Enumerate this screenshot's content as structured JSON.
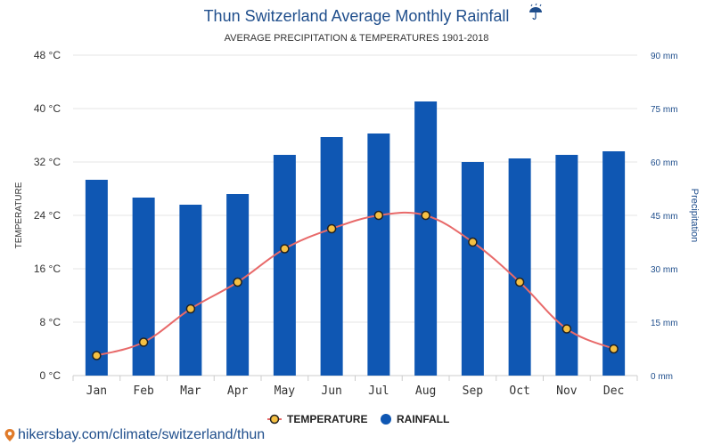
{
  "chart_data": {
    "type": "bar",
    "title": "Thun Switzerland Average Monthly Rainfall",
    "title_icon": "umbrella-rain-icon",
    "subtitle": "AVERAGE PRECIPITATION & TEMPERATURES 1901-2018",
    "categories": [
      "Jan",
      "Feb",
      "Mar",
      "Apr",
      "May",
      "Jun",
      "Jul",
      "Aug",
      "Sep",
      "Oct",
      "Nov",
      "Dec"
    ],
    "series": [
      {
        "name": "TEMPERATURE",
        "type": "line",
        "axis": "left",
        "color": "#e86a6a",
        "marker_fill": "#f5c043",
        "values": [
          3,
          5,
          10,
          14,
          19,
          22,
          24,
          24,
          20,
          14,
          7,
          4
        ]
      },
      {
        "name": "RAINFALL",
        "type": "bar",
        "axis": "right",
        "color": "#0f57b3",
        "values": [
          55,
          50,
          48,
          51,
          62,
          67,
          68,
          77,
          60,
          61,
          62,
          63
        ]
      }
    ],
    "ylabel": "TEMPERATURE",
    "ylabel_right": "Precipitation",
    "ylim": [
      0,
      48
    ],
    "ylim_right": [
      0,
      90
    ],
    "yticks": [
      "0 °C",
      "8 °C",
      "16 °C",
      "24 °C",
      "32 °C",
      "40 °C",
      "48 °C"
    ],
    "yticks_right": [
      "0 mm",
      "15 mm",
      "30 mm",
      "45 mm",
      "60 mm",
      "75 mm",
      "90 mm"
    ],
    "grid": true,
    "legend_position": "bottom-center"
  },
  "source": {
    "icon": "location-pin-icon",
    "text": "hikersbay.com/climate/switzerland/thun"
  }
}
